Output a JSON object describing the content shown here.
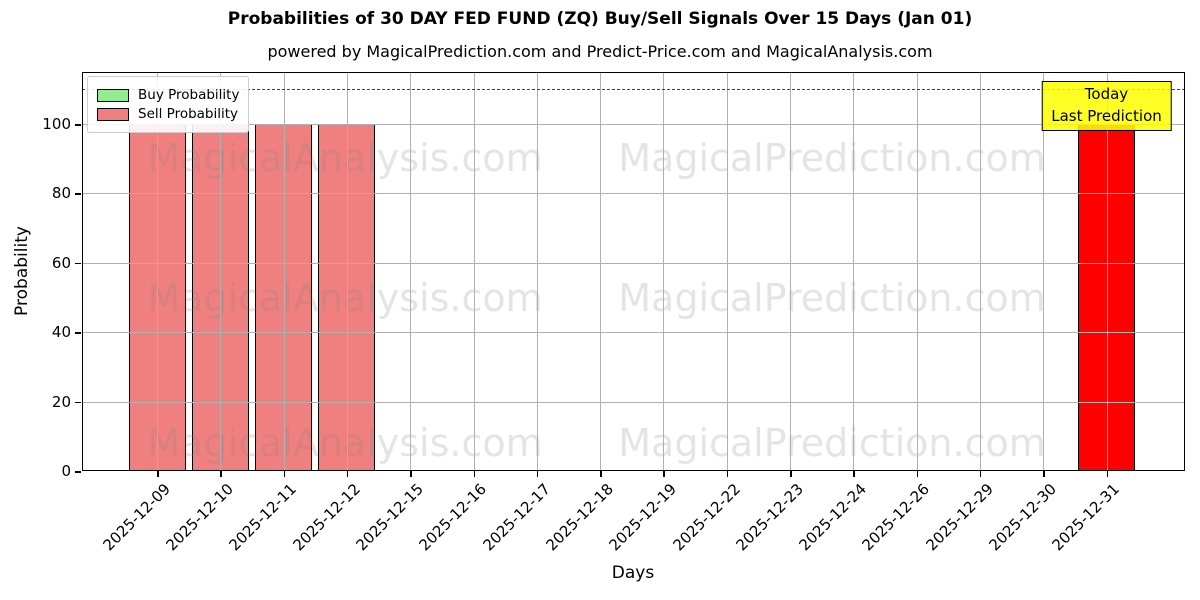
{
  "chart_data": {
    "type": "bar",
    "title": "Probabilities of 30 DAY FED FUND (ZQ) Buy/Sell Signals Over 15 Days (Jan 01)",
    "subtitle": "powered by MagicalPrediction.com and Predict-Price.com and MagicalAnalysis.com",
    "xlabel": "Days",
    "ylabel": "Probability",
    "ylim": [
      0,
      115
    ],
    "yticks": [
      0,
      20,
      40,
      60,
      80,
      100
    ],
    "grid": true,
    "legend_position": "upper-left",
    "categories": [
      "2025-12-09",
      "2025-12-10",
      "2025-12-11",
      "2025-12-12",
      "2025-12-15",
      "2025-12-16",
      "2025-12-17",
      "2025-12-18",
      "2025-12-19",
      "2025-12-22",
      "2025-12-23",
      "2025-12-24",
      "2025-12-26",
      "2025-12-29",
      "2025-12-30",
      "2025-12-31"
    ],
    "series": [
      {
        "name": "Buy Probability",
        "color": "#90ee90",
        "values": [
          0,
          0,
          0,
          0,
          0,
          0,
          0,
          0,
          0,
          0,
          0,
          0,
          0,
          0,
          0,
          0
        ]
      },
      {
        "name": "Sell Probability",
        "color": "#f08080",
        "values": [
          100,
          100,
          100,
          100,
          0,
          0,
          0,
          0,
          0,
          0,
          0,
          0,
          0,
          0,
          0,
          100
        ]
      }
    ],
    "today_bar": {
      "category": "2025-12-31",
      "index": 15,
      "value": 100,
      "color": "#ff0000"
    },
    "reference_line": {
      "y": 110,
      "style": "dashed",
      "color": "#444444"
    },
    "annotation": {
      "lines": [
        "Today",
        "Last Prediction"
      ],
      "bg_color": "#ffff00",
      "border_color": "#000000"
    },
    "watermarks": [
      "MagicalAnalysis.com",
      "MagicalPrediction.com"
    ],
    "colors": {
      "grid": "#b0b0b0",
      "watermark": "rgba(128,128,128,0.21)",
      "axis": "#000000"
    }
  }
}
